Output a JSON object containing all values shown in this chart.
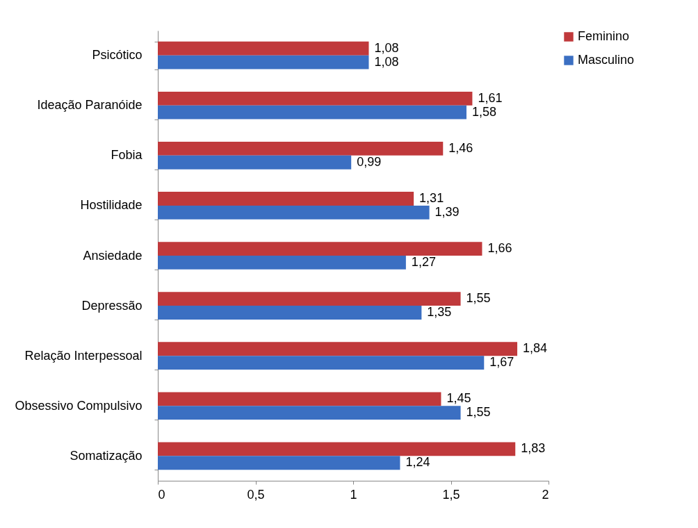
{
  "chart_data": {
    "type": "bar",
    "orientation": "horizontal",
    "categories": [
      "Psicótico",
      "Ideação Paranóide",
      "Fobia",
      "Hostilidade",
      "Ansiedade",
      "Depressão",
      "Relação Interpessoal",
      "Obsessivo Compulsivo",
      "Somatização"
    ],
    "series": [
      {
        "name": "Feminino",
        "color": "#c0393b",
        "values": [
          1.08,
          1.61,
          1.46,
          1.31,
          1.66,
          1.55,
          1.84,
          1.45,
          1.83
        ],
        "value_labels": [
          "1,08",
          "1,61",
          "1,46",
          "1,31",
          "1,66",
          "1,55",
          "1,84",
          "1,45",
          "1,83"
        ]
      },
      {
        "name": "Masculino",
        "color": "#3b6fc2",
        "values": [
          1.08,
          1.58,
          0.99,
          1.39,
          1.27,
          1.35,
          1.67,
          1.55,
          1.24
        ],
        "value_labels": [
          "1,08",
          "1,58",
          "0,99",
          "1,39",
          "1,27",
          "1,35",
          "1,67",
          "1,55",
          "1,24"
        ]
      }
    ],
    "xlim": [
      0,
      2
    ],
    "xticks": [
      0,
      {
        "value": 0.5,
        "label": "0,5"
      },
      1,
      {
        "value": 1.5,
        "label": "1,5"
      },
      2
    ],
    "grid": false,
    "legend": "right"
  }
}
